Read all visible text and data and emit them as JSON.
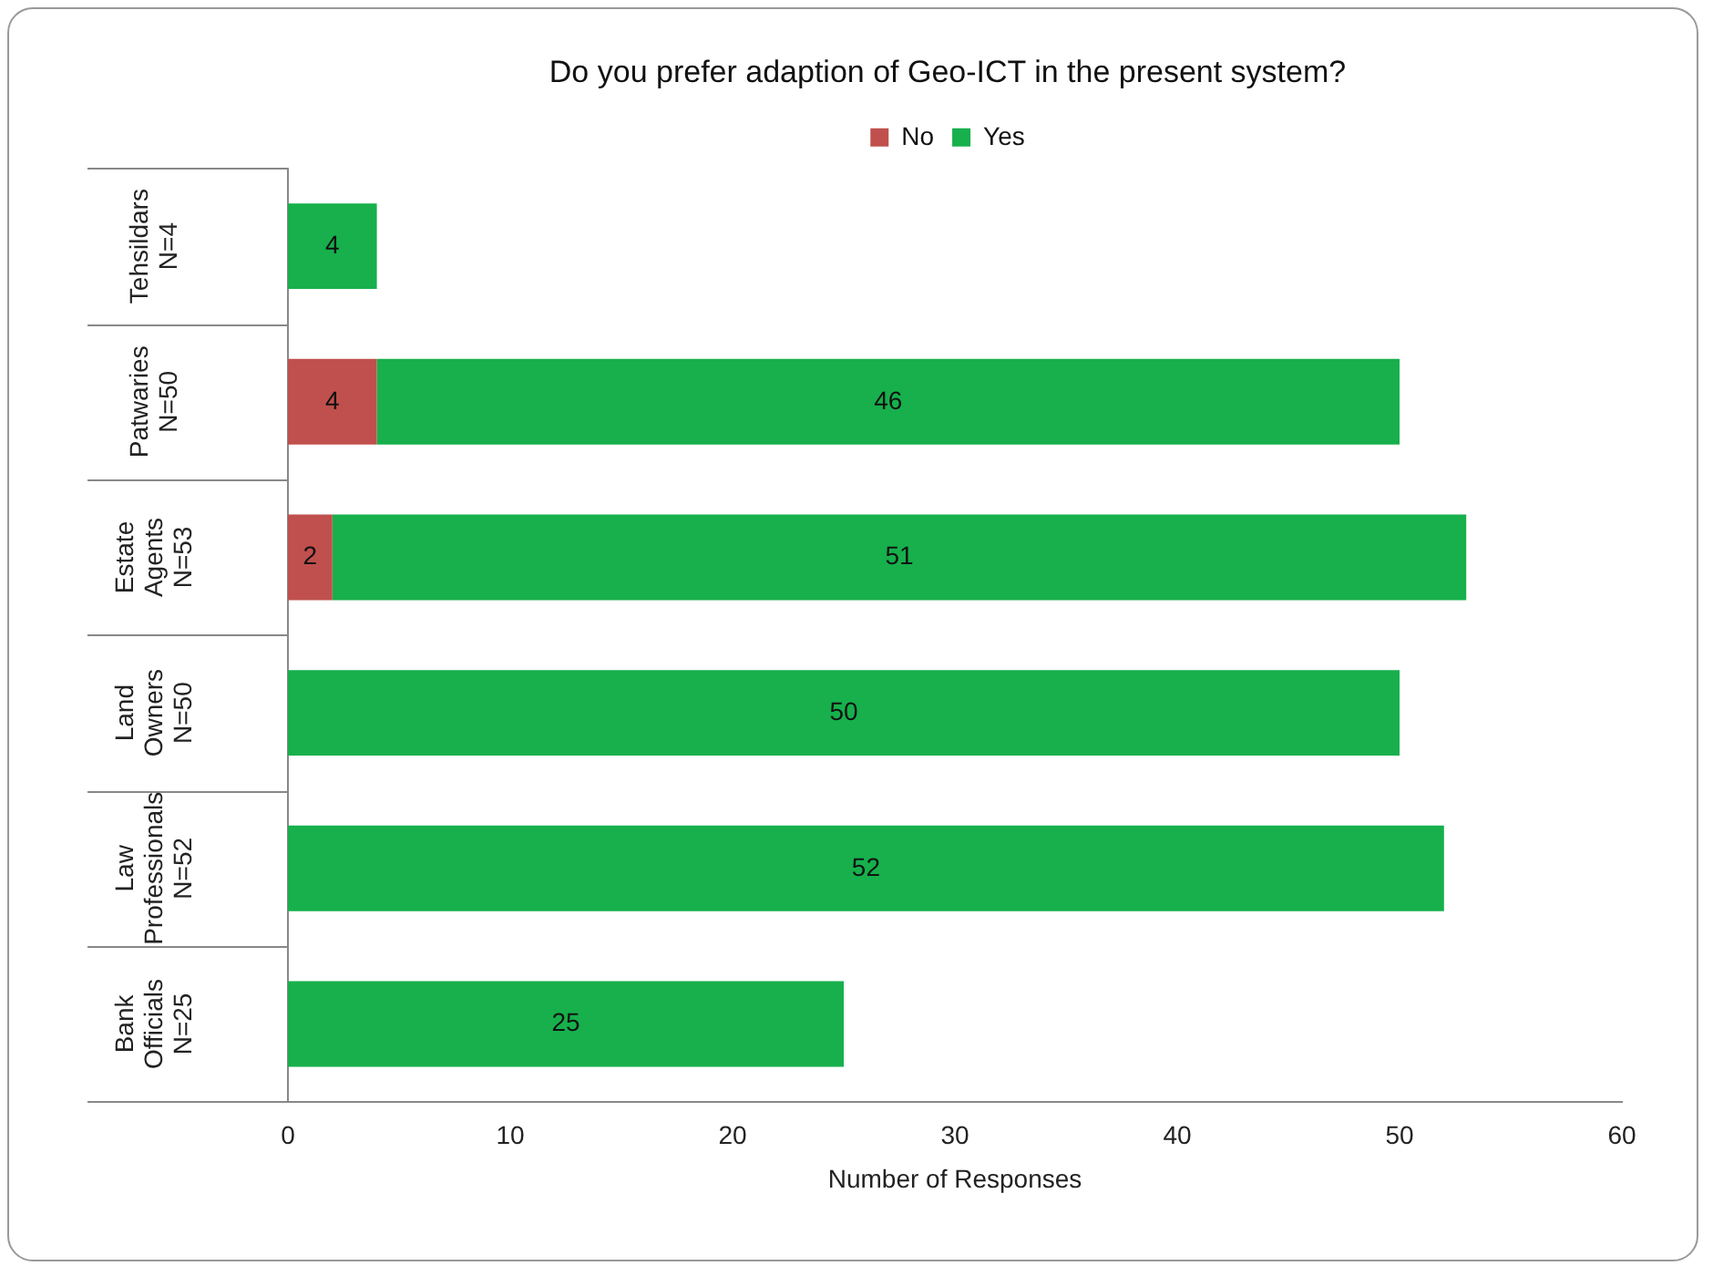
{
  "chart_data": {
    "type": "bar",
    "orientation": "horizontal",
    "stacked": true,
    "title": "Do you prefer adaption of Geo-ICT in the present system?",
    "xlabel": "Number of Responses",
    "categories": [
      "Tehsildars\nN=4",
      "Patwaries\nN=50",
      "Estate Agents\nN=53",
      "Land Owners\nN=50",
      "Law Professionals\nN=52",
      "Bank Officials\nN=25"
    ],
    "series": [
      {
        "name": "No",
        "color": "#c0504d",
        "values": [
          null,
          4,
          2,
          null,
          null,
          null
        ]
      },
      {
        "name": "Yes",
        "color": "#17b04c",
        "values": [
          4,
          46,
          51,
          50,
          52,
          25
        ]
      }
    ],
    "xlim": [
      0,
      60
    ],
    "xticks": [
      0,
      10,
      20,
      30,
      40,
      50,
      60
    ],
    "grid": false,
    "legend": "top right",
    "data_labels": true
  }
}
